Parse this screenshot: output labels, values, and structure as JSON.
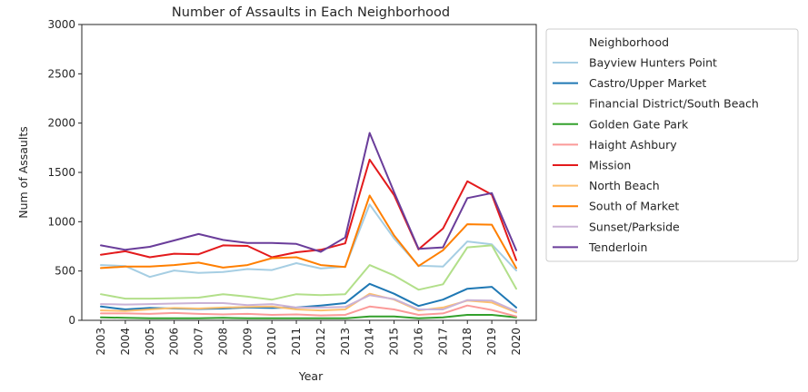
{
  "chart_data": {
    "type": "line",
    "title": "Number of Assaults in Each Neighborhood",
    "xlabel": "Year",
    "ylabel": "Num of Assaults",
    "xlim": [
      2003,
      2020
    ],
    "ylim": [
      0,
      3000
    ],
    "yticks": [
      "0",
      "500",
      "1000",
      "1500",
      "2000",
      "2500",
      "3000"
    ],
    "x": [
      "2003",
      "2004",
      "2005",
      "2006",
      "2007",
      "2008",
      "2009",
      "2010",
      "2011",
      "2012",
      "2013",
      "2014",
      "2015",
      "2016",
      "2017",
      "2018",
      "2019",
      "2020"
    ],
    "grid": false,
    "legend": {
      "title": "Neighborhood",
      "position": "outside-right"
    },
    "series": [
      {
        "name": "Bayview Hunters Point",
        "color": "#a6cee3",
        "values": [
          560,
          550,
          440,
          505,
          480,
          490,
          520,
          510,
          580,
          525,
          545,
          1175,
          830,
          555,
          545,
          800,
          770,
          505
        ]
      },
      {
        "name": "Castro/Upper Market",
        "color": "#1f78b4",
        "values": [
          140,
          110,
          125,
          120,
          115,
          120,
          130,
          125,
          130,
          150,
          175,
          370,
          270,
          145,
          210,
          320,
          340,
          130
        ]
      },
      {
        "name": "Financial District/South Beach",
        "color": "#b2df8a",
        "values": [
          265,
          220,
          220,
          225,
          230,
          265,
          240,
          210,
          265,
          255,
          265,
          560,
          455,
          310,
          365,
          740,
          760,
          320
        ]
      },
      {
        "name": "Golden Gate Park",
        "color": "#33a02c",
        "values": [
          30,
          25,
          20,
          20,
          20,
          25,
          20,
          20,
          20,
          20,
          20,
          40,
          40,
          20,
          30,
          55,
          55,
          30
        ]
      },
      {
        "name": "Haight Ashbury",
        "color": "#fb9a99",
        "values": [
          70,
          70,
          65,
          75,
          65,
          60,
          65,
          55,
          60,
          50,
          55,
          140,
          110,
          55,
          70,
          150,
          105,
          40
        ]
      },
      {
        "name": "Mission",
        "color": "#e31a1c",
        "values": [
          665,
          700,
          640,
          675,
          670,
          760,
          755,
          640,
          690,
          715,
          780,
          1630,
          1270,
          720,
          930,
          1410,
          1275,
          610
        ]
      },
      {
        "name": "North Beach",
        "color": "#fdbf6f",
        "values": [
          100,
          95,
          110,
          125,
          120,
          130,
          135,
          140,
          110,
          100,
          110,
          270,
          210,
          100,
          130,
          200,
          180,
          80
        ]
      },
      {
        "name": "South of Market",
        "color": "#ff7f00",
        "values": [
          530,
          545,
          545,
          560,
          585,
          535,
          560,
          630,
          640,
          560,
          540,
          1265,
          860,
          550,
          710,
          975,
          970,
          530
        ]
      },
      {
        "name": "Sunset/Parkside",
        "color": "#cab2d6",
        "values": [
          165,
          160,
          165,
          170,
          175,
          175,
          155,
          165,
          130,
          130,
          135,
          255,
          215,
          110,
          110,
          205,
          200,
          90
        ]
      },
      {
        "name": "Tenderloin",
        "color": "#6a3d9a",
        "values": [
          760,
          715,
          745,
          810,
          875,
          815,
          785,
          785,
          775,
          695,
          840,
          1900,
          1300,
          725,
          740,
          1240,
          1290,
          710
        ]
      }
    ]
  }
}
